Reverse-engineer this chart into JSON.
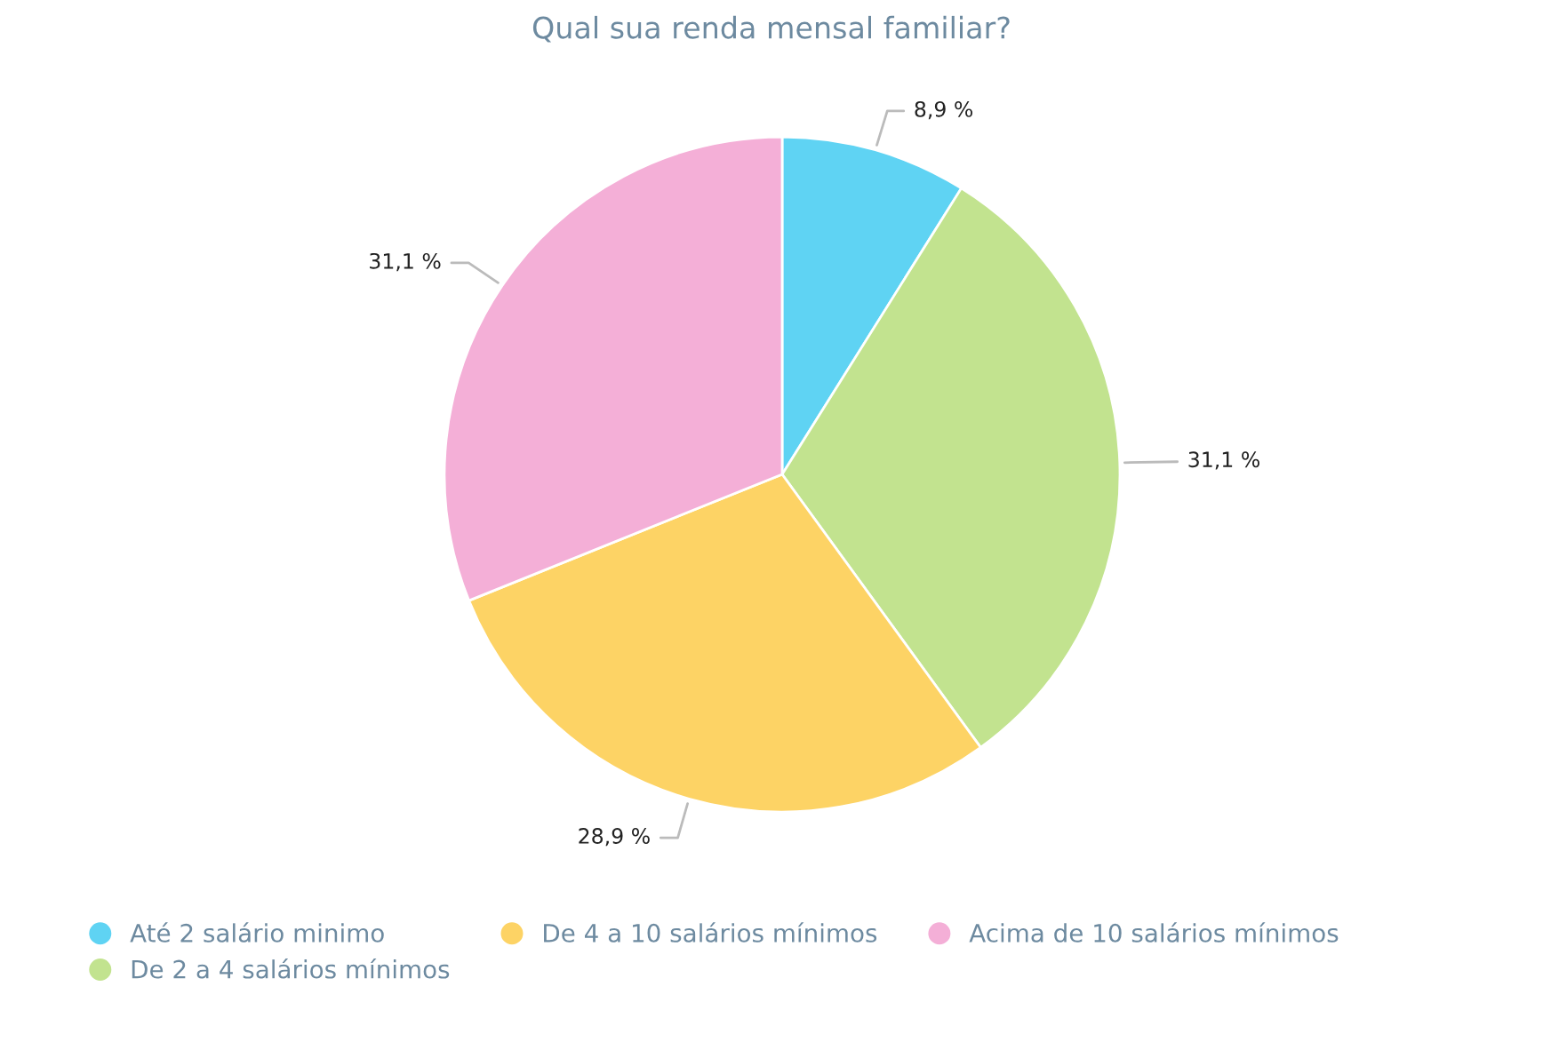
{
  "chart_data": {
    "type": "pie",
    "title": "Qual sua renda mensal familiar?",
    "categories": [
      "Até 2 salário minimo",
      "De 2 a 4 salários mínimos",
      "De 4 a 10 salários mínimos",
      "Acima de 10 salários mínimos"
    ],
    "values": [
      8.9,
      31.1,
      28.9,
      31.1
    ],
    "colors": [
      "#5fd3f3",
      "#c2e38f",
      "#fdd365",
      "#f4afd7"
    ],
    "value_labels": [
      "8,9 %",
      "31,1 %",
      "28,9 %",
      "31,1 %"
    ],
    "legend": "bottom left"
  }
}
